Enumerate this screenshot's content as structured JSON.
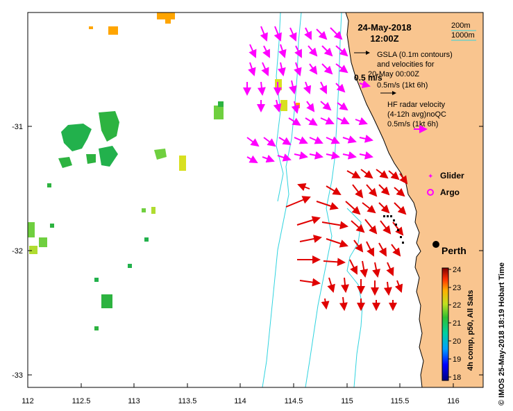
{
  "header": {
    "date": "24-May-2018",
    "time": "12:00Z"
  },
  "legend": {
    "contour_200m": "200m",
    "contour_1000m": "1000m",
    "gsla_line1": "GSLA (0.1m contours)",
    "gsla_line2": "and velocities for",
    "gsla_line3": "20-May 00:00Z",
    "gsla_scale": "0.5m/s (1kt 6h)",
    "scale_arrow_label": "0.5 m/s",
    "hf_line1": "HF radar velocity",
    "hf_line2": "(4-12h avg)noQC",
    "hf_scale": "0.5m/s (1kt 6h)",
    "glider": "Glider",
    "argo": "Argo",
    "city": "Perth"
  },
  "axes": {
    "x_ticks": [
      "112",
      "112.5",
      "113",
      "113.5",
      "114",
      "114.5",
      "115",
      "115.5",
      "116"
    ],
    "y_ticks": [
      "-31",
      "-32",
      "-33"
    ]
  },
  "colorbar": {
    "ticks": [
      "24",
      "23",
      "22",
      "21",
      "20",
      "19",
      "18"
    ],
    "label": "4h comp, p50, All Sats"
  },
  "credit": "© IMOS 25-May-2018 18:19 Hobart Time",
  "colors": {
    "land": "#f9c58f",
    "bathymetry": "#2fd3df",
    "gsla_arrow": "#ff00ff",
    "hf_arrow": "#e00000"
  }
}
